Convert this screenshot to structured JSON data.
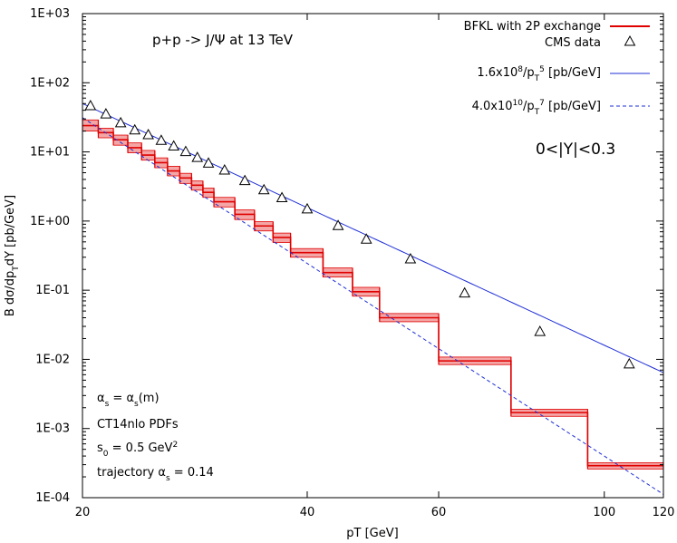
{
  "chart_data": {
    "type": "line",
    "title": "p+p -> J/Ψ at 13 TeV",
    "xlabel": "pT [GeV]",
    "ylabel": "B dσ/dp_T dY [pb/GeV]",
    "x_scale": "log",
    "y_scale": "log",
    "xlim": [
      20,
      120
    ],
    "ylim": [
      0.0001,
      1000
    ],
    "x_ticks": [
      {
        "value": 20,
        "label": "20"
      },
      {
        "value": 40,
        "label": "40"
      },
      {
        "value": 60,
        "label": "60"
      },
      {
        "value": 100,
        "label": "100"
      },
      {
        "value": 120,
        "label": "120"
      }
    ],
    "y_ticks": [
      {
        "value": 0.0001,
        "label": "1E-04"
      },
      {
        "value": 0.001,
        "label": "1E-03"
      },
      {
        "value": 0.01,
        "label": "1E-02"
      },
      {
        "value": 0.1,
        "label": "1E-01"
      },
      {
        "value": 1,
        "label": "1E+00"
      },
      {
        "value": 10,
        "label": "1E+01"
      },
      {
        "value": 100,
        "label": "1E+02"
      },
      {
        "value": 1000,
        "label": "1E+03"
      }
    ],
    "grid": false,
    "legend_position": "top-right",
    "series": [
      {
        "name": "BFKL with 2P exchange",
        "kind": "step-band",
        "color": "#e00000",
        "band_color": "#f4a6a6",
        "bins": [
          {
            "x0": 20,
            "x1": 21,
            "y": 24,
            "lo": 20,
            "hi": 29
          },
          {
            "x0": 21,
            "x1": 22,
            "y": 19,
            "lo": 16,
            "hi": 22
          },
          {
            "x0": 22,
            "x1": 23,
            "y": 15,
            "lo": 12.5,
            "hi": 17.5
          },
          {
            "x0": 23,
            "x1": 24,
            "y": 11.5,
            "lo": 9.7,
            "hi": 13.5
          },
          {
            "x0": 24,
            "x1": 25,
            "y": 9,
            "lo": 7.6,
            "hi": 10.5
          },
          {
            "x0": 25,
            "x1": 26,
            "y": 7,
            "lo": 5.9,
            "hi": 8.2
          },
          {
            "x0": 26,
            "x1": 27,
            "y": 5.3,
            "lo": 4.5,
            "hi": 6.2
          },
          {
            "x0": 27,
            "x1": 28,
            "y": 4.2,
            "lo": 3.5,
            "hi": 4.9
          },
          {
            "x0": 28,
            "x1": 29,
            "y": 3.3,
            "lo": 2.8,
            "hi": 3.8
          },
          {
            "x0": 29,
            "x1": 30,
            "y": 2.6,
            "lo": 2.2,
            "hi": 3.0
          },
          {
            "x0": 30,
            "x1": 32,
            "y": 1.9,
            "lo": 1.6,
            "hi": 2.2
          },
          {
            "x0": 32,
            "x1": 34,
            "y": 1.25,
            "lo": 1.05,
            "hi": 1.45
          },
          {
            "x0": 34,
            "x1": 36,
            "y": 0.85,
            "lo": 0.72,
            "hi": 0.98
          },
          {
            "x0": 36,
            "x1": 38,
            "y": 0.58,
            "lo": 0.49,
            "hi": 0.67
          },
          {
            "x0": 38,
            "x1": 42,
            "y": 0.35,
            "lo": 0.3,
            "hi": 0.4
          },
          {
            "x0": 42,
            "x1": 46,
            "y": 0.18,
            "lo": 0.155,
            "hi": 0.21
          },
          {
            "x0": 46,
            "x1": 50,
            "y": 0.095,
            "lo": 0.082,
            "hi": 0.11
          },
          {
            "x0": 50,
            "x1": 60,
            "y": 0.04,
            "lo": 0.035,
            "hi": 0.046
          },
          {
            "x0": 60,
            "x1": 75,
            "y": 0.0095,
            "lo": 0.0084,
            "hi": 0.0108
          },
          {
            "x0": 75,
            "x1": 95,
            "y": 0.0017,
            "lo": 0.0015,
            "hi": 0.0019
          },
          {
            "x0": 95,
            "x1": 120,
            "y": 0.00029,
            "lo": 0.00026,
            "hi": 0.00032
          }
        ]
      },
      {
        "name": "CMS data",
        "kind": "points",
        "marker": "open-triangle",
        "color": "#000000",
        "x": [
          20.5,
          21.5,
          22.5,
          23.5,
          24.5,
          25.5,
          26.5,
          27.5,
          28.5,
          29.5,
          31,
          33,
          35,
          37,
          40,
          44,
          48,
          55,
          65,
          82,
          108
        ],
        "y": [
          46,
          35,
          26,
          20.5,
          17.5,
          14.5,
          12,
          10,
          8.2,
          6.8,
          5.4,
          3.8,
          2.8,
          2.15,
          1.48,
          0.85,
          0.54,
          0.28,
          0.09,
          0.025,
          0.0085
        ]
      },
      {
        "name": "1.6x10^8/p_T^5 [pb/GeV]",
        "kind": "function",
        "coefficient": 160000000,
        "power": 5,
        "style": "solid",
        "color": "#1f2fd6"
      },
      {
        "name": "4.0x10^10/p_T^7 [pb/GeV]",
        "kind": "function",
        "coefficient": 40000000000,
        "power": 7,
        "style": "dashed",
        "color": "#1f2fd6"
      }
    ],
    "annotations": {
      "rapidity": "0<|Y|<0.3",
      "notes": [
        "α_s = α_s(m)",
        "CT14nlo PDFs",
        "s_0 = 0.5 GeV^2",
        "trajectory α_s = 0.14"
      ]
    }
  }
}
